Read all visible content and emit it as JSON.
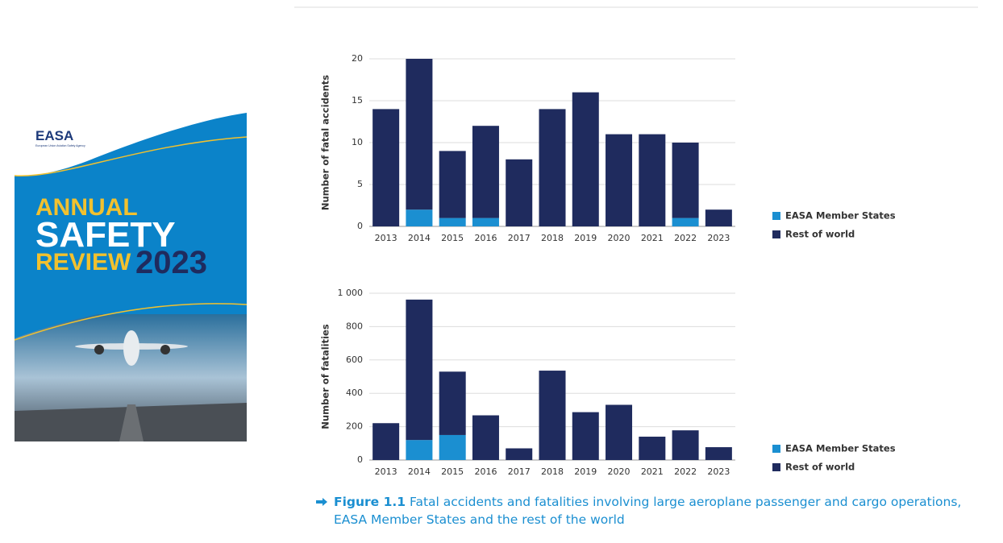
{
  "cover": {
    "logo": "EASA",
    "agency": "European Union Aviation Safety Agency",
    "line1": "ANNUAL",
    "line2": "SAFETY",
    "line3": "REVIEW",
    "year": "2023"
  },
  "chart_data": [
    {
      "type": "bar",
      "stacked": true,
      "y_label": "Number of fatal accidents",
      "categories": [
        "2013",
        "2014",
        "2015",
        "2016",
        "2017",
        "2018",
        "2019",
        "2020",
        "2021",
        "2022",
        "2023"
      ],
      "series": [
        {
          "name": "EASA Member States",
          "color": "#1b8fd1",
          "values": [
            0,
            2,
            1,
            1,
            0,
            0,
            0,
            0,
            0,
            1,
            0
          ]
        },
        {
          "name": "Rest of world",
          "color": "#1f2b5e",
          "values": [
            14,
            18,
            8,
            11,
            8,
            14,
            16,
            11,
            11,
            9,
            2
          ]
        }
      ],
      "ylim": [
        0,
        20
      ],
      "yticks": [
        0,
        5,
        10,
        15,
        20
      ],
      "grid": true
    },
    {
      "type": "bar",
      "stacked": true,
      "y_label": "Number of fatalities",
      "categories": [
        "2013",
        "2014",
        "2015",
        "2016",
        "2017",
        "2018",
        "2019",
        "2020",
        "2021",
        "2022",
        "2023"
      ],
      "series": [
        {
          "name": "EASA Member States",
          "color": "#1b8fd1",
          "values": [
            0,
            120,
            150,
            0,
            0,
            0,
            0,
            0,
            0,
            0,
            0
          ]
        },
        {
          "name": "Rest of world",
          "color": "#1f2b5e",
          "values": [
            221,
            842,
            380,
            268,
            70,
            536,
            287,
            331,
            140,
            178,
            77
          ]
        }
      ],
      "ylim": [
        0,
        1000
      ],
      "yticks": [
        0,
        200,
        400,
        600,
        800,
        {
          "value": 1000,
          "label": "1 000"
        }
      ],
      "grid": true
    }
  ],
  "caption": {
    "figure": "Figure 1.1",
    "text": "Fatal accidents and fatalities involving large aeroplane passenger and cargo operations, EASA Member States and the rest of the world"
  }
}
